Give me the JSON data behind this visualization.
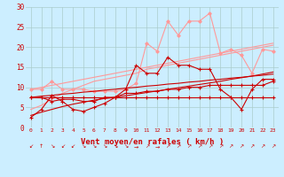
{
  "bg_color": "#cceeff",
  "grid_color": "#aacccc",
  "x_min": 0,
  "x_max": 23,
  "y_min": 0,
  "y_max": 30,
  "xlabel": "Vent moyen/en rafales ( km/h )",
  "xlabel_color": "#cc0000",
  "tick_color": "#cc0000",
  "yticks": [
    0,
    5,
    10,
    15,
    20,
    25,
    30
  ],
  "series": [
    {
      "color": "#ff9999",
      "lw": 0.8,
      "marker": "D",
      "ms": 1.8,
      "y": [
        9.5,
        9.5,
        11.5,
        9.5,
        9.5,
        9.5,
        9.0,
        9.0,
        9.0,
        9.5,
        11.0,
        21.0,
        19.0,
        26.5,
        23.0,
        26.5,
        26.5,
        28.5,
        18.5,
        19.5,
        18.0,
        13.5,
        19.5,
        19.0
      ]
    },
    {
      "color": "#ff9999",
      "lw": 0.8,
      "marker": null,
      "ms": 0,
      "y": [
        4.5,
        5.5,
        7.0,
        8.5,
        9.5,
        10.5,
        11.5,
        12.0,
        12.5,
        13.0,
        13.5,
        14.5,
        15.0,
        15.5,
        16.0,
        16.5,
        17.0,
        17.5,
        18.0,
        18.5,
        19.0,
        19.5,
        20.0,
        20.5
      ]
    },
    {
      "color": "#ff9999",
      "lw": 0.8,
      "marker": null,
      "ms": 0,
      "y": [
        9.5,
        10.0,
        10.5,
        11.0,
        11.5,
        12.0,
        12.5,
        13.0,
        13.5,
        14.0,
        14.5,
        15.0,
        15.5,
        16.0,
        16.5,
        17.0,
        17.5,
        18.0,
        18.5,
        19.0,
        19.5,
        20.0,
        20.5,
        21.0
      ]
    },
    {
      "color": "#cc0000",
      "lw": 0.8,
      "marker": "+",
      "ms": 3.0,
      "y": [
        2.5,
        4.5,
        8.0,
        6.5,
        4.5,
        4.0,
        5.0,
        6.0,
        7.5,
        9.5,
        15.5,
        13.5,
        13.5,
        17.5,
        15.5,
        15.5,
        14.5,
        14.5,
        9.5,
        7.5,
        4.5,
        9.5,
        12.0,
        12.0
      ]
    },
    {
      "color": "#cc0000",
      "lw": 0.8,
      "marker": "+",
      "ms": 3.0,
      "y": [
        7.5,
        7.5,
        6.5,
        7.0,
        7.0,
        6.5,
        6.5,
        7.5,
        7.5,
        8.5,
        8.5,
        9.0,
        9.0,
        9.5,
        9.5,
        10.0,
        10.0,
        10.5,
        10.5,
        10.5,
        10.5,
        10.5,
        10.5,
        11.5
      ]
    },
    {
      "color": "#cc0000",
      "lw": 0.8,
      "marker": "+",
      "ms": 3.0,
      "y": [
        7.5,
        7.5,
        7.5,
        7.5,
        7.5,
        7.5,
        7.5,
        7.5,
        7.5,
        7.5,
        7.5,
        7.5,
        7.5,
        7.5,
        7.5,
        7.5,
        7.5,
        7.5,
        7.5,
        7.5,
        7.5,
        7.5,
        7.5,
        7.5
      ]
    },
    {
      "color": "#cc0000",
      "lw": 0.8,
      "marker": null,
      "ms": 0,
      "y": [
        3.0,
        3.8,
        4.5,
        5.2,
        5.8,
        6.3,
        6.8,
        7.2,
        7.5,
        7.9,
        8.3,
        8.7,
        9.1,
        9.5,
        9.9,
        10.3,
        10.7,
        11.1,
        11.5,
        12.0,
        12.4,
        12.8,
        13.3,
        13.8
      ]
    },
    {
      "color": "#cc0000",
      "lw": 0.8,
      "marker": null,
      "ms": 0,
      "y": [
        7.5,
        7.8,
        8.0,
        8.3,
        8.5,
        8.8,
        9.0,
        9.3,
        9.5,
        9.8,
        10.0,
        10.3,
        10.5,
        10.8,
        11.0,
        11.3,
        11.5,
        11.8,
        12.0,
        12.3,
        12.5,
        12.8,
        13.0,
        13.3
      ]
    }
  ],
  "wind_symbols": [
    "↙",
    "↑",
    "↘",
    "↙",
    "↙",
    "↘",
    "↘",
    "↘",
    "↘",
    "↘",
    "→",
    "↗",
    "→",
    "↗",
    "↗",
    "↗",
    "↗",
    "↗",
    "↗",
    "↗",
    "↗",
    "↗",
    "↗",
    "↗"
  ]
}
